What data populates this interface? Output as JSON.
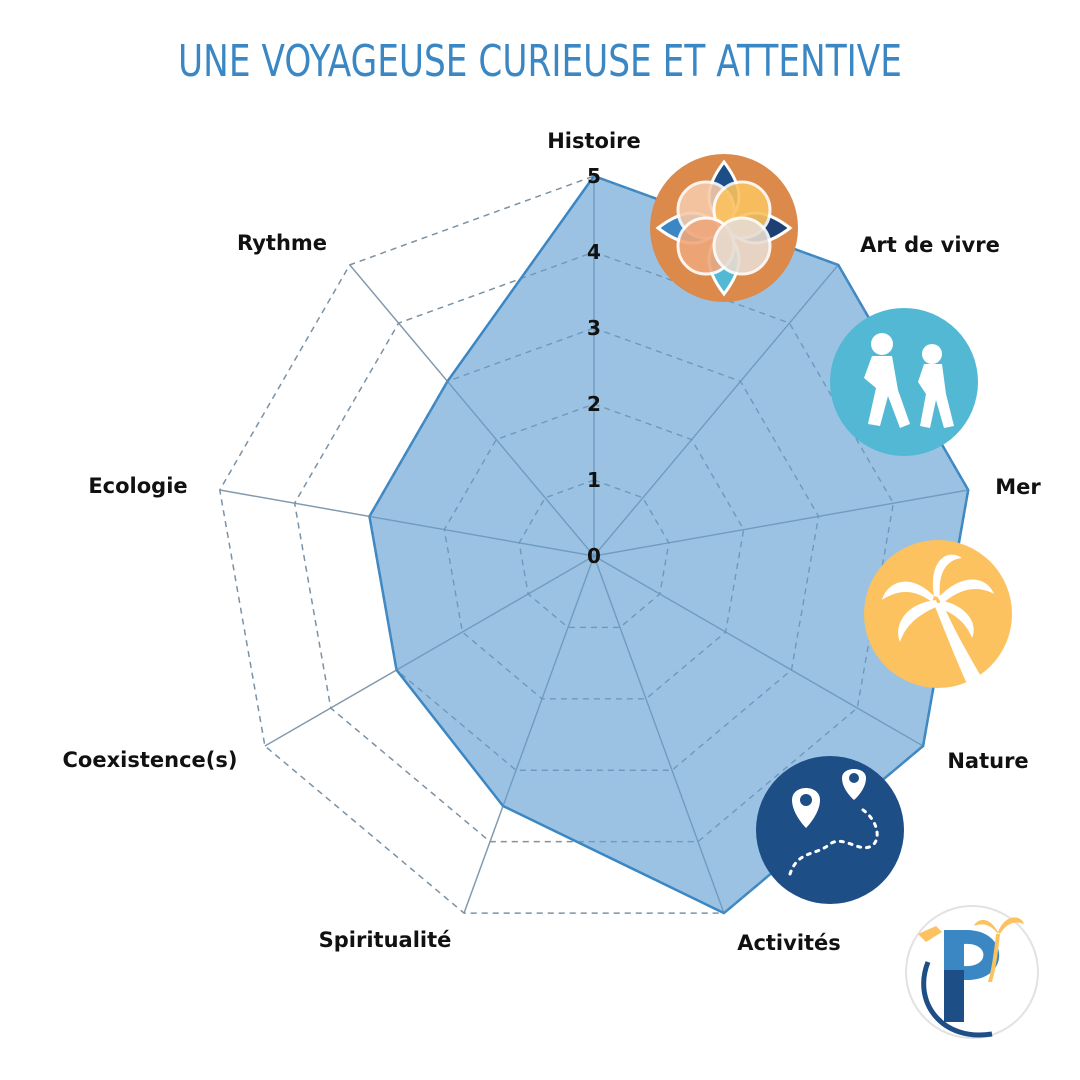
{
  "title": "UNE VOYAGEUSE CURIEUSE ET ATTENTIVE",
  "colors": {
    "title": "#3a87c4",
    "fill": "#7aaed9",
    "stroke": "#3a87c4",
    "grid": "#999999",
    "icon_history_bg": "#db8a4c",
    "icon_walk_bg": "#53b8d4",
    "icon_palm_bg": "#fbc25f",
    "icon_route_bg": "#1d4e86"
  },
  "chart_data": {
    "type": "radar",
    "title": "UNE VOYAGEUSE CURIEUSE ET ATTENTIVE",
    "categories": [
      "Histoire",
      "Art de vivre",
      "Mer",
      "Nature",
      "Activités",
      "Spiritualité",
      "Coexistence(s)",
      "Ecologie",
      "Rythme"
    ],
    "values": [
      5,
      5,
      5,
      5,
      5,
      3.5,
      3,
      3,
      3
    ],
    "rlim": [
      0,
      5
    ],
    "ticks": [
      "0",
      "1",
      "2",
      "3",
      "4",
      "5"
    ],
    "grid": true,
    "icons": [
      "mandala-icon",
      "walking-people-icon",
      "palm-tree-icon",
      "route-map-icon"
    ]
  },
  "logo": "p-palm-logo"
}
